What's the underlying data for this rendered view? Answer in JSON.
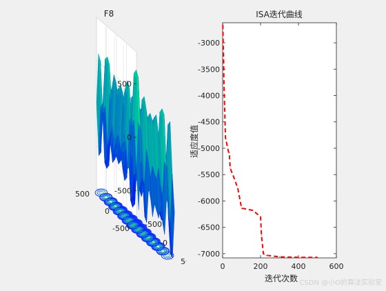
{
  "chart_data": [
    {
      "type": "surface",
      "title": "F8",
      "z_ticks": [
        "500",
        "0",
        "-500"
      ],
      "y_ticks": [
        "500",
        "0",
        "-500"
      ],
      "x_ticks": [
        "500",
        "0",
        "-500"
      ],
      "xlim": [
        -500,
        500
      ],
      "ylim": [
        -500,
        500
      ],
      "zlim": [
        -800,
        800
      ],
      "colormap": "winter",
      "surface_colors": [
        "#0000ff",
        "#00ff80"
      ],
      "contour_colors": [
        "#0a2cff",
        "#1a7dd6",
        "#19b8a0"
      ],
      "grid": true
    },
    {
      "type": "line",
      "title": "ISA迭代曲线",
      "xlabel": "迭代次数",
      "ylabel": "适应度值",
      "xlim": [
        0,
        600
      ],
      "ylim": [
        -7080,
        -2620
      ],
      "x_ticks": [
        0,
        200,
        400,
        600
      ],
      "y_ticks": [
        -3000,
        -3500,
        -4000,
        -4500,
        -5000,
        -5500,
        -6000,
        -6500,
        -7000
      ],
      "line_color": "#ff0000",
      "line_style": "dashed",
      "grid": false,
      "x": [
        1,
        3,
        5,
        7,
        10,
        15,
        20,
        30,
        35,
        40,
        60,
        80,
        100,
        120,
        160,
        200,
        205,
        215,
        230,
        300,
        400,
        500
      ],
      "y": [
        -2660,
        -3000,
        -3320,
        -3760,
        -4180,
        -4800,
        -4880,
        -5060,
        -5090,
        -5380,
        -5560,
        -5760,
        -6140,
        -6150,
        -6180,
        -6300,
        -6660,
        -7000,
        -7030,
        -7060,
        -7070,
        -7070
      ]
    }
  ],
  "watermark": "CSDN @小O的算法实验室"
}
